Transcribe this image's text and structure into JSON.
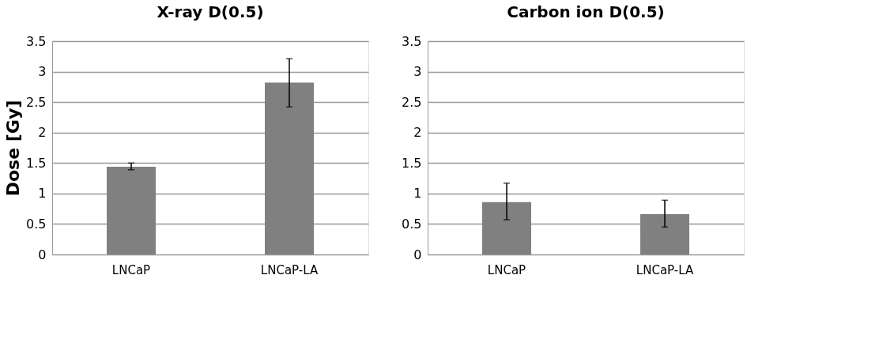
{
  "chart_data": [
    {
      "type": "bar",
      "title": "X-ray D(0.5)",
      "ylabel": "Dose [Gy]",
      "categories": [
        "LNCaP",
        "LNCaP-LA"
      ],
      "values": [
        1.44,
        2.82
      ],
      "errors": [
        [
          1.39,
          1.5
        ],
        [
          2.42,
          3.21
        ]
      ],
      "color": "#808080",
      "ylim": [
        0,
        3.5
      ],
      "yticks": [
        0,
        0.5,
        1,
        1.5,
        2,
        2.5,
        3,
        3.5
      ],
      "grid": "y"
    },
    {
      "type": "bar",
      "title": "Carbon ion D(0.5)",
      "categories": [
        "LNCaP",
        "LNCaP-LA"
      ],
      "values": [
        0.86,
        0.66
      ],
      "errors": [
        [
          0.57,
          1.17
        ],
        [
          0.45,
          0.89
        ]
      ],
      "color": "#808080",
      "ylim": [
        0,
        3.5
      ],
      "yticks": [
        0,
        0.5,
        1,
        1.5,
        2,
        2.5,
        3,
        3.5
      ],
      "grid": "y"
    }
  ]
}
